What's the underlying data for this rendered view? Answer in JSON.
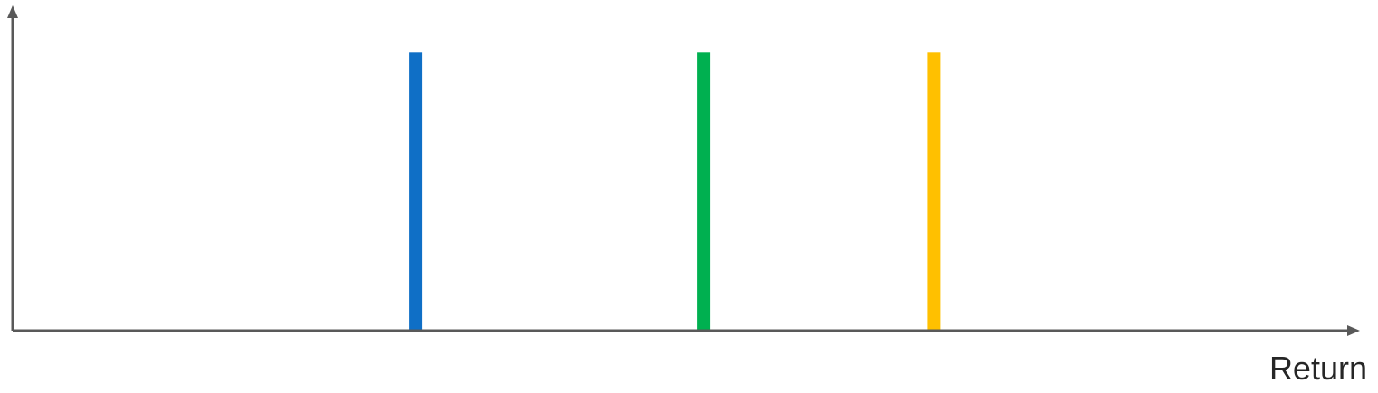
{
  "chart_data": {
    "type": "bar",
    "title": "",
    "xlabel": "Return",
    "ylabel": "",
    "grid": false,
    "legend": "none",
    "series": [
      {
        "x": 0.35,
        "value": 1,
        "color": "#0F6FC6"
      },
      {
        "x": 0.6,
        "value": 1,
        "color": "#00B050"
      },
      {
        "x": 0.8,
        "value": 1,
        "color": "#FFC000"
      }
    ],
    "xlim": [
      0,
      1.17
    ],
    "ylim": [
      0,
      1.17
    ]
  }
}
